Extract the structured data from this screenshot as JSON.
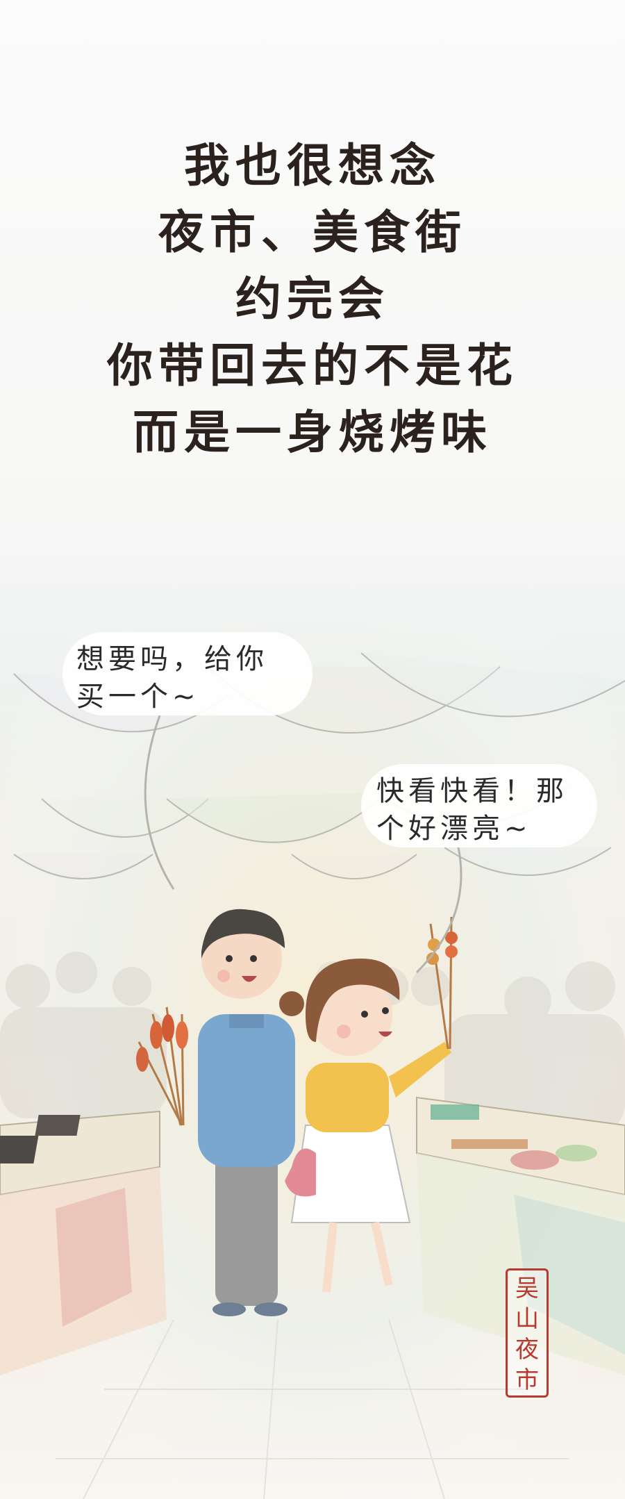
{
  "poem": {
    "lines": [
      "我也很想念",
      "夜市、美食街",
      "约完会",
      "你带回去的不是花",
      "而是一身烧烤味"
    ]
  },
  "bubbles": {
    "left": {
      "line1": "想要吗，给你",
      "line2": "买一个~"
    },
    "right": {
      "line1": "快看快看！那",
      "line2": "个好漂亮~"
    }
  },
  "seal": {
    "chars": [
      "吴",
      "山",
      "夜",
      "市"
    ]
  },
  "colors": {
    "text": "#2b211d",
    "seal": "#b83a2e",
    "shirt_man": "#7aa7cf",
    "shirt_woman": "#f2c14e",
    "skirt": "#ffffff"
  }
}
